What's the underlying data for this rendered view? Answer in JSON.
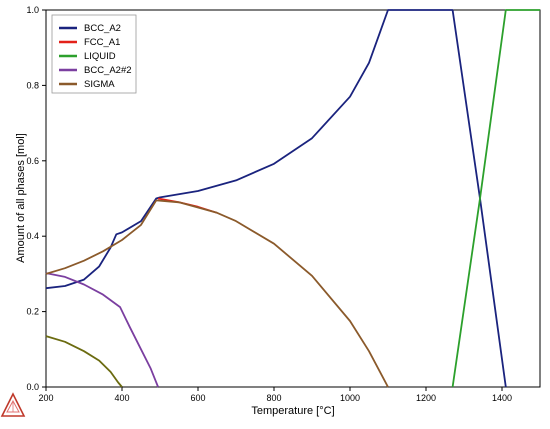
{
  "chart_data": {
    "type": "line",
    "title": "",
    "xlabel": "Temperature [°C]",
    "ylabel": "Amount of all phases [mol]",
    "xlim": [
      200,
      1500
    ],
    "ylim": [
      0,
      1
    ],
    "xticks": [
      200,
      400,
      600,
      800,
      1000,
      1200,
      1400
    ],
    "yticks": [
      0,
      0.2,
      0.4,
      0.6,
      0.8,
      1.0
    ],
    "ytick_labels": [
      "0.0",
      "0.2",
      "0.4",
      "0.6",
      "0.8",
      "1.0"
    ],
    "grid": false,
    "legend_position": "top-left",
    "series": [
      {
        "name": "BCC_A2",
        "color": "#1a237e",
        "points": [
          [
            200,
            0.262
          ],
          [
            250,
            0.268
          ],
          [
            300,
            0.285
          ],
          [
            340,
            0.32
          ],
          [
            370,
            0.37
          ],
          [
            385,
            0.405
          ],
          [
            400,
            0.41
          ],
          [
            450,
            0.44
          ],
          [
            490,
            0.5
          ],
          [
            500,
            0.503
          ],
          [
            600,
            0.52
          ],
          [
            700,
            0.548
          ],
          [
            800,
            0.592
          ],
          [
            900,
            0.66
          ],
          [
            1000,
            0.77
          ],
          [
            1050,
            0.86
          ],
          [
            1100,
            1.0
          ],
          [
            1270,
            1.0
          ],
          [
            1342,
            0.5
          ],
          [
            1410,
            0.0
          ]
        ]
      },
      {
        "name": "FCC_A1",
        "color": "#e32119",
        "points": [
          [
            495,
            0.5
          ],
          [
            550,
            0.49
          ],
          [
            600,
            0.478
          ],
          [
            650,
            0.462
          ]
        ]
      },
      {
        "name": "LIQUID",
        "color": "#2ca02c",
        "points": [
          [
            1270,
            0.0
          ],
          [
            1342,
            0.5
          ],
          [
            1410,
            1.0
          ],
          [
            1500,
            1.0
          ]
        ]
      },
      {
        "name": "BCC_A2#2",
        "color": "#7b3fa0",
        "points": [
          [
            200,
            0.302
          ],
          [
            250,
            0.292
          ],
          [
            300,
            0.272
          ],
          [
            350,
            0.245
          ],
          [
            395,
            0.212
          ],
          [
            420,
            0.16
          ],
          [
            450,
            0.1
          ],
          [
            475,
            0.05
          ],
          [
            495,
            0.0
          ]
        ]
      },
      {
        "name": "SIGMA",
        "color": "#8b5a2b",
        "points": [
          [
            200,
            0.3
          ],
          [
            250,
            0.315
          ],
          [
            300,
            0.335
          ],
          [
            350,
            0.36
          ],
          [
            400,
            0.39
          ],
          [
            450,
            0.43
          ],
          [
            490,
            0.495
          ],
          [
            550,
            0.49
          ],
          [
            650,
            0.462
          ],
          [
            700,
            0.44
          ],
          [
            800,
            0.38
          ],
          [
            900,
            0.295
          ],
          [
            1000,
            0.175
          ],
          [
            1050,
            0.095
          ],
          [
            1100,
            0.0
          ]
        ]
      },
      {
        "name": "",
        "color": "#6b6b10",
        "points": [
          [
            200,
            0.135
          ],
          [
            250,
            0.12
          ],
          [
            300,
            0.095
          ],
          [
            340,
            0.07
          ],
          [
            370,
            0.04
          ],
          [
            390,
            0.012
          ],
          [
            400,
            0.0
          ]
        ]
      }
    ]
  }
}
